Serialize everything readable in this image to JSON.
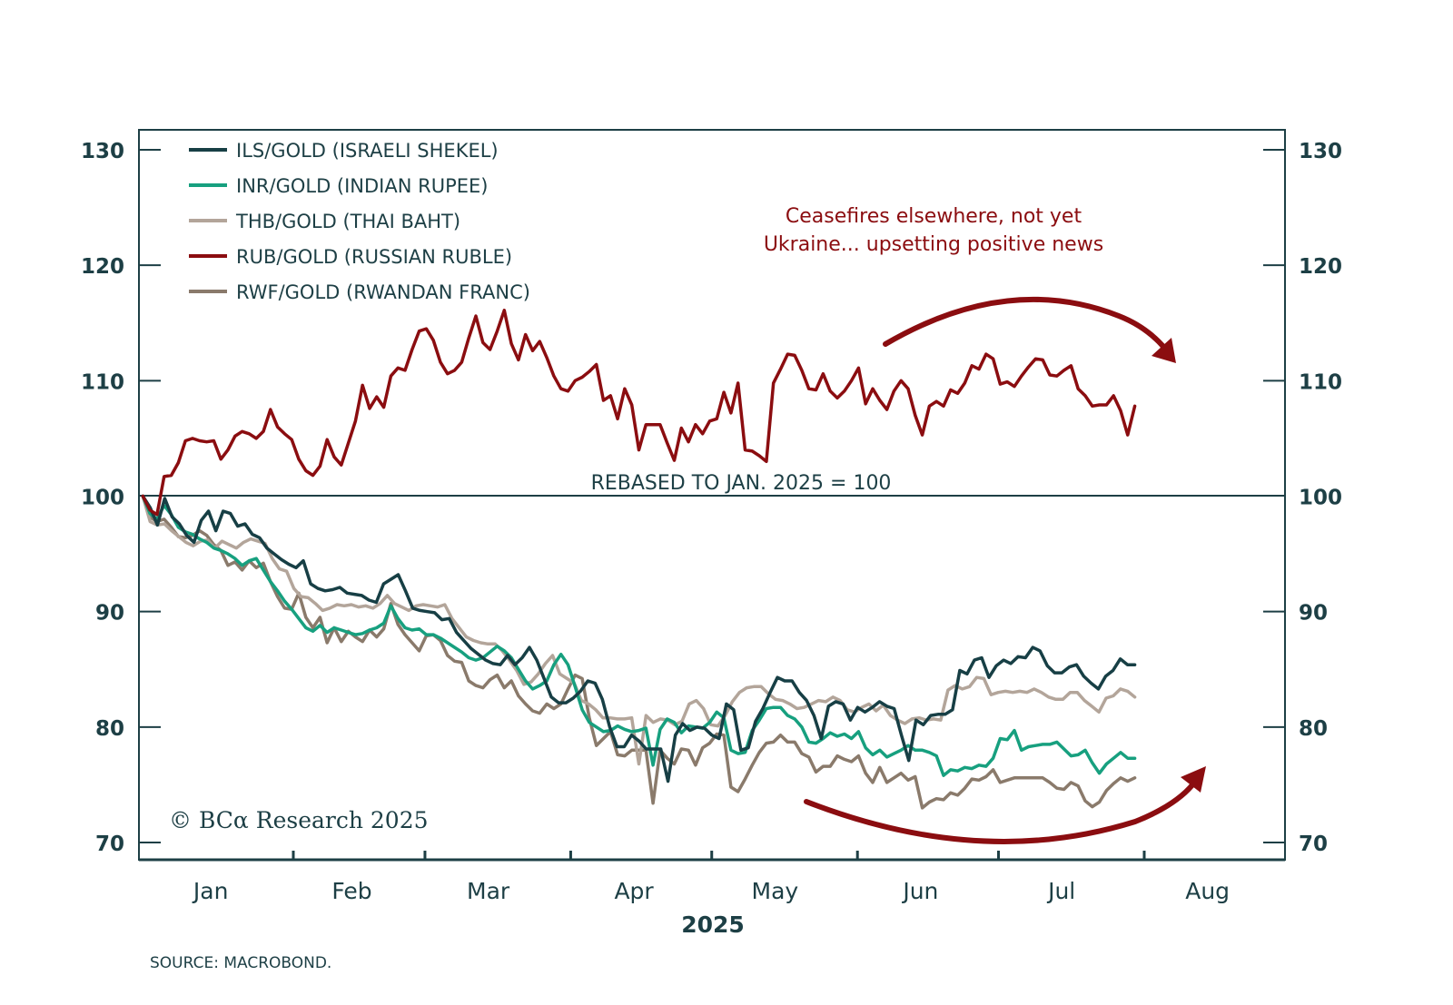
{
  "chart_data": {
    "type": "line",
    "title": "",
    "xlabel": "2025",
    "ylabel": "",
    "ylim": [
      70,
      130
    ],
    "yticks": [
      70,
      80,
      90,
      100,
      110,
      120,
      130
    ],
    "ytick_labels": [
      "70",
      "80",
      "90",
      "100",
      "110",
      "120",
      "130"
    ],
    "x_unit": "day of year 2025 (0 = Jan 1)",
    "xlim_days": [
      -2,
      243
    ],
    "month_boundaries_days": [
      31,
      59,
      90,
      120,
      151,
      181,
      212
    ],
    "months": [
      {
        "label": "Jan",
        "mid_day": 15
      },
      {
        "label": "Feb",
        "mid_day": 45
      },
      {
        "label": "Mar",
        "mid_day": 74
      },
      {
        "label": "Apr",
        "mid_day": 105
      },
      {
        "label": "May",
        "mid_day": 135
      },
      {
        "label": "Jun",
        "mid_day": 166
      },
      {
        "label": "Jul",
        "mid_day": 196
      },
      {
        "label": "Aug",
        "mid_day": 227
      }
    ],
    "reference_line": {
      "value": 100,
      "label": "REBASED TO JAN. 2025 = 100"
    },
    "grid": false,
    "legend_position": "top-left",
    "series": [
      {
        "name": "ILS/GOLD (ISRAELI SHEKEL)",
        "color": "#173f45",
        "start_day": -1,
        "end_day": 210,
        "values": [
          100,
          99.0,
          97.5,
          99.8,
          98.2,
          97.6,
          96.6,
          96.0,
          97.9,
          98.7,
          97.0,
          98.7,
          98.5,
          97.4,
          97.6,
          96.7,
          96.4,
          95.5,
          95.0,
          94.5,
          94.1,
          93.8,
          94.4,
          92.4,
          92.0,
          91.8,
          91.9,
          92.1,
          91.6,
          91.5,
          91.4,
          91.0,
          90.8,
          92.4,
          92.8,
          93.2,
          91.8,
          90.3,
          90.1,
          90.0,
          89.9,
          89.3,
          89.4,
          88.2,
          87.5,
          86.8,
          86.3,
          85.8,
          85.5,
          85.4,
          86.2,
          85.4,
          86.0,
          86.9,
          85.8,
          84.2,
          82.6,
          82.1,
          82.1,
          82.5,
          83.1,
          84.0,
          83.8,
          82.4,
          80.0,
          78.3,
          78.3,
          79.3,
          78.8,
          78.1,
          78.1,
          78.1,
          75.3,
          79.3,
          80.3,
          79.7,
          80.0,
          79.9,
          79.3,
          79.0,
          82.0,
          81.5,
          78.0,
          78.2,
          80.5,
          81.6,
          83.0,
          84.3,
          84.0,
          84.0,
          83.0,
          82.3,
          81.0,
          79.0,
          81.8,
          82.2,
          82.0,
          80.6,
          81.7,
          81.3,
          81.7,
          82.2,
          81.8,
          81.6,
          79.3,
          77.1,
          80.6,
          80.2,
          81.0,
          81.1,
          81.1,
          81.5,
          84.9,
          84.6,
          85.8,
          86.0,
          84.3,
          85.3,
          85.8,
          85.5,
          86.1,
          86.0,
          86.9,
          86.6,
          85.3,
          84.7,
          84.7,
          85.2,
          85.4,
          84.4,
          83.8,
          83.3,
          84.4,
          84.9,
          85.9,
          85.4,
          85.4
        ]
      },
      {
        "name": "INR/GOLD (INDIAN RUPEE)",
        "color": "#17a07f",
        "start_day": -1,
        "end_day": 210,
        "values": [
          100,
          98.5,
          98.0,
          99.2,
          98.4,
          97.3,
          96.9,
          96.7,
          96.3,
          96.0,
          95.5,
          95.3,
          95.0,
          94.6,
          94.0,
          94.4,
          94.6,
          93.6,
          92.6,
          91.8,
          90.9,
          90.2,
          89.4,
          88.6,
          88.3,
          88.8,
          88.2,
          88.6,
          88.4,
          88.2,
          88.0,
          88.1,
          88.4,
          88.6,
          89.0,
          90.5,
          89.4,
          88.6,
          88.4,
          88.5,
          88.0,
          88.0,
          87.7,
          87.3,
          86.9,
          86.5,
          86.0,
          85.8,
          86.0,
          86.5,
          87.0,
          86.6,
          86.0,
          85.0,
          84.0,
          83.3,
          83.6,
          84.0,
          85.4,
          86.3,
          85.4,
          83.5,
          81.5,
          80.4,
          80.0,
          79.6,
          79.7,
          80.1,
          79.8,
          79.6,
          79.7,
          79.9,
          76.7,
          79.8,
          80.7,
          80.4,
          79.5,
          80.1,
          80.0,
          79.9,
          80.4,
          81.3,
          80.8,
          78.0,
          77.7,
          77.8,
          79.7,
          80.6,
          81.6,
          81.7,
          81.7,
          81.0,
          80.7,
          80.0,
          78.7,
          78.6,
          79.0,
          79.5,
          79.2,
          79.4,
          79.0,
          79.6,
          78.2,
          77.6,
          78.0,
          77.4,
          77.7,
          78.0,
          78.4,
          78.0,
          78.0,
          77.8,
          77.5,
          75.8,
          76.3,
          76.2,
          76.5,
          76.4,
          76.7,
          76.6,
          77.3,
          79.0,
          78.9,
          79.7,
          78.0,
          78.3,
          78.4,
          78.5,
          78.5,
          78.7,
          78.1,
          77.5,
          77.6,
          78.0,
          76.9,
          76.0,
          76.8,
          77.3,
          77.8,
          77.3,
          77.3
        ]
      },
      {
        "name": "THB/GOLD (THAI BAHT)",
        "color": "#b3a59a",
        "start_day": -1,
        "end_day": 210,
        "values": [
          100,
          97.8,
          97.5,
          97.6,
          97.0,
          96.5,
          96.0,
          95.7,
          96.1,
          96.2,
          95.5,
          96.1,
          95.8,
          95.5,
          96.0,
          96.3,
          96.1,
          95.9,
          94.6,
          93.7,
          93.5,
          92.0,
          91.3,
          91.2,
          90.7,
          90.1,
          90.3,
          90.6,
          90.5,
          90.6,
          90.4,
          90.5,
          90.3,
          90.7,
          91.4,
          90.7,
          90.4,
          90.1,
          90.5,
          90.6,
          90.5,
          90.4,
          90.6,
          89.4,
          88.6,
          87.8,
          87.5,
          87.3,
          87.2,
          87.2,
          86.6,
          85.8,
          84.9,
          83.7,
          83.9,
          84.6,
          85.5,
          86.2,
          84.6,
          84.2,
          83.8,
          82.3,
          82.0,
          81.5,
          80.8,
          80.8,
          80.7,
          80.7,
          80.8,
          76.8,
          81.0,
          80.4,
          80.7,
          80.6,
          80.2,
          80.5,
          82.0,
          82.3,
          81.6,
          80.2,
          80.1,
          81.0,
          82.2,
          83.0,
          83.4,
          83.5,
          83.5,
          82.9,
          82.4,
          82.3,
          82.0,
          81.6,
          81.7,
          82.0,
          82.3,
          82.2,
          82.6,
          82.3,
          81.5,
          81.3,
          81.7,
          82.0,
          81.4,
          81.9,
          81.0,
          80.6,
          80.3,
          80.7,
          80.8,
          80.6,
          80.7,
          80.6,
          83.2,
          83.6,
          83.3,
          83.5,
          84.3,
          84.2,
          82.8,
          83.0,
          83.1,
          83.0,
          83.1,
          83.0,
          83.3,
          83.0,
          82.6,
          82.4,
          82.4,
          83.0,
          83.0,
          82.3,
          81.8,
          81.3,
          82.5,
          82.7,
          83.3,
          83.1,
          82.6
        ]
      },
      {
        "name": "RUB/GOLD (RUSSIAN RUBLE)",
        "color": "#8b0d10",
        "start_day": -1,
        "end_day": 210,
        "values": [
          100,
          98.8,
          98.4,
          101.7,
          101.8,
          102.9,
          104.8,
          105.0,
          104.8,
          104.7,
          104.8,
          103.2,
          104.0,
          105.2,
          105.6,
          105.4,
          105.0,
          105.6,
          107.5,
          106.0,
          105.4,
          104.9,
          103.2,
          102.2,
          101.8,
          102.6,
          104.9,
          103.4,
          102.7,
          104.6,
          106.5,
          109.6,
          107.6,
          108.6,
          107.7,
          110.4,
          111.1,
          110.9,
          112.7,
          114.3,
          114.5,
          113.5,
          111.6,
          110.6,
          110.9,
          111.6,
          113.7,
          115.6,
          113.3,
          112.7,
          114.3,
          116.1,
          113.2,
          111.8,
          114.0,
          112.6,
          113.4,
          112.0,
          110.4,
          109.3,
          109.1,
          110.0,
          110.3,
          110.8,
          111.4,
          108.3,
          108.7,
          106.7,
          109.3,
          107.9,
          104.0,
          106.2,
          106.2,
          106.2,
          104.6,
          103.1,
          105.9,
          104.7,
          106.2,
          105.4,
          106.5,
          106.7,
          109.0,
          107.2,
          109.8,
          104.0,
          103.9,
          103.5,
          103.0,
          109.8,
          111.0,
          112.3,
          112.2,
          110.9,
          109.3,
          109.2,
          110.6,
          109.1,
          108.5,
          109.1,
          110.0,
          111.1,
          108.0,
          109.3,
          108.3,
          107.5,
          109.1,
          110.0,
          109.3,
          107.0,
          105.3,
          107.8,
          108.2,
          107.8,
          109.2,
          108.9,
          109.8,
          111.3,
          111.0,
          112.3,
          111.9,
          109.7,
          109.9,
          109.5,
          110.4,
          111.2,
          111.9,
          111.8,
          110.5,
          110.4,
          110.9,
          111.3,
          109.3,
          108.7,
          107.8,
          107.9,
          107.9,
          108.7,
          107.4,
          105.3,
          107.8
        ]
      },
      {
        "name": "RWF/GOLD (RWANDAN FRANC)",
        "color": "#8a7a6b",
        "start_day": -1,
        "end_day": 210,
        "values": [
          100,
          98.2,
          97.8,
          98.0,
          97.3,
          96.5,
          96.4,
          96.6,
          97.0,
          96.6,
          95.8,
          95.3,
          94.0,
          94.3,
          93.6,
          94.4,
          93.8,
          94.2,
          92.6,
          91.3,
          90.3,
          90.2,
          91.6,
          89.5,
          88.6,
          89.5,
          87.3,
          88.6,
          87.4,
          88.3,
          87.8,
          87.4,
          88.4,
          87.8,
          88.5,
          90.7,
          88.9,
          88.0,
          87.3,
          86.6,
          87.9,
          88.0,
          87.5,
          86.2,
          85.7,
          85.6,
          84.0,
          83.6,
          83.4,
          84.1,
          84.5,
          83.4,
          84.0,
          82.7,
          82.0,
          81.4,
          81.2,
          82.0,
          81.6,
          82.0,
          83.3,
          84.5,
          84.2,
          80.8,
          78.4,
          79.0,
          79.6,
          77.6,
          77.5,
          78.0,
          78.0,
          78.0,
          73.4,
          78.0,
          77.3,
          76.8,
          78.1,
          78.0,
          76.7,
          78.2,
          78.6,
          79.4,
          79.3,
          74.8,
          74.4,
          75.5,
          76.7,
          77.8,
          78.6,
          78.7,
          79.3,
          78.7,
          78.7,
          77.7,
          77.4,
          76.1,
          76.6,
          76.6,
          77.5,
          77.2,
          77.0,
          77.5,
          76.0,
          75.2,
          76.5,
          75.2,
          75.6,
          76.0,
          75.4,
          75.7,
          73.0,
          73.5,
          73.8,
          73.7,
          74.3,
          74.1,
          74.7,
          75.5,
          75.4,
          75.7,
          76.3,
          75.2,
          75.4,
          75.6,
          75.6,
          75.6,
          75.6,
          75.6,
          75.2,
          74.7,
          74.6,
          75.2,
          74.9,
          73.6,
          73.1,
          73.5,
          74.5,
          75.1,
          75.6,
          75.3,
          75.6
        ]
      }
    ],
    "annotations": [
      {
        "text_lines": [
          "Ceasefires elsewhere, not yet",
          "Ukraine... upsetting positive news"
        ],
        "color": "#8b0d10"
      },
      {
        "type": "arrow",
        "description": "arc arrow curving down over RUB/GOLD (Jun–Jul)",
        "color": "#8b0d10"
      },
      {
        "type": "arrow",
        "description": "arc arrow curving up under lower series (May–Aug)",
        "color": "#8b0d10"
      }
    ]
  },
  "copyright": "© BCα Research 2025",
  "source": "SOURCE: MACROBOND.",
  "axis_color": "#1d3f45"
}
